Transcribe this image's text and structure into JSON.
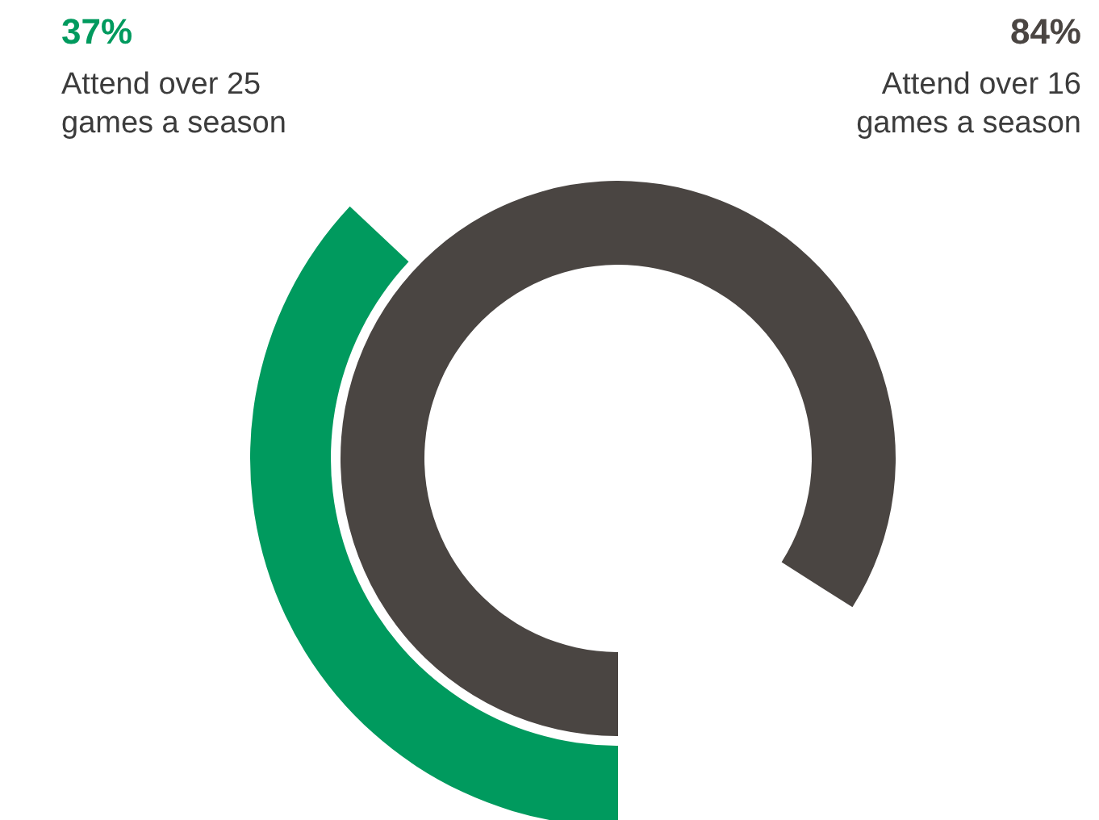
{
  "chart_data": {
    "type": "other",
    "categories": [
      "Attend over 25\ngames a season",
      "Attend over 16\ngames a season"
    ],
    "values": [
      37,
      84
    ],
    "value_labels": [
      "37%",
      "84%"
    ],
    "colors": [
      "#009a5e",
      "#4a4542"
    ]
  }
}
